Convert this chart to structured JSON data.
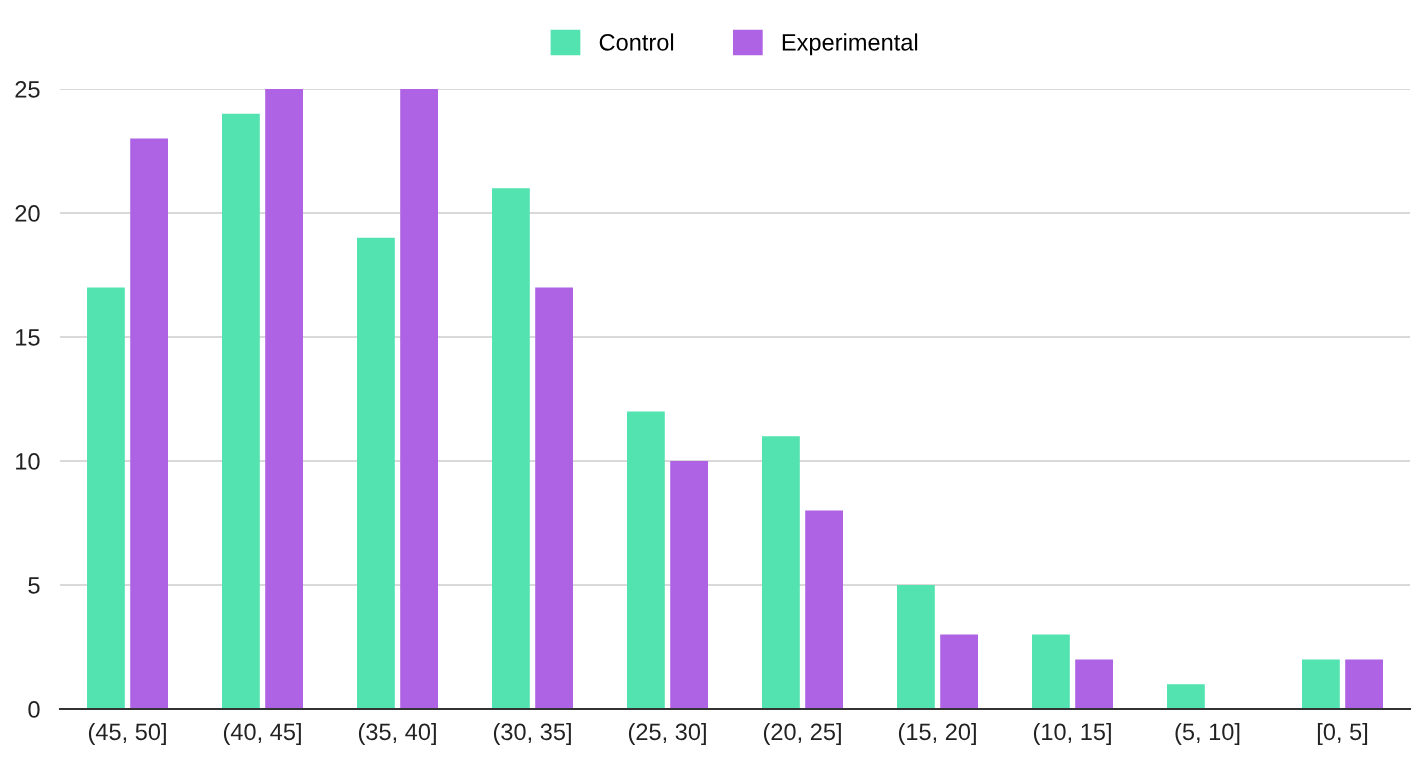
{
  "chart_data": {
    "type": "bar",
    "categories": [
      "(45, 50]",
      "(40, 45]",
      "(35, 40]",
      "(30, 35]",
      "(25, 30]",
      "(20, 25]",
      "(15, 20]",
      "(10, 15]",
      "(5, 10]",
      "[0, 5]"
    ],
    "series": [
      {
        "name": "Control",
        "color": "#52e3b1",
        "values": [
          17,
          24,
          19,
          21,
          12,
          11,
          5,
          3,
          1,
          2
        ]
      },
      {
        "name": "Experimental",
        "color": "#ae63e4",
        "values": [
          23,
          25,
          25,
          17,
          10,
          8,
          3,
          2,
          0,
          2
        ]
      }
    ],
    "ylim": [
      0,
      25
    ],
    "yticks": [
      0,
      5,
      10,
      15,
      20,
      25
    ],
    "grid": "y",
    "legend": "top"
  }
}
